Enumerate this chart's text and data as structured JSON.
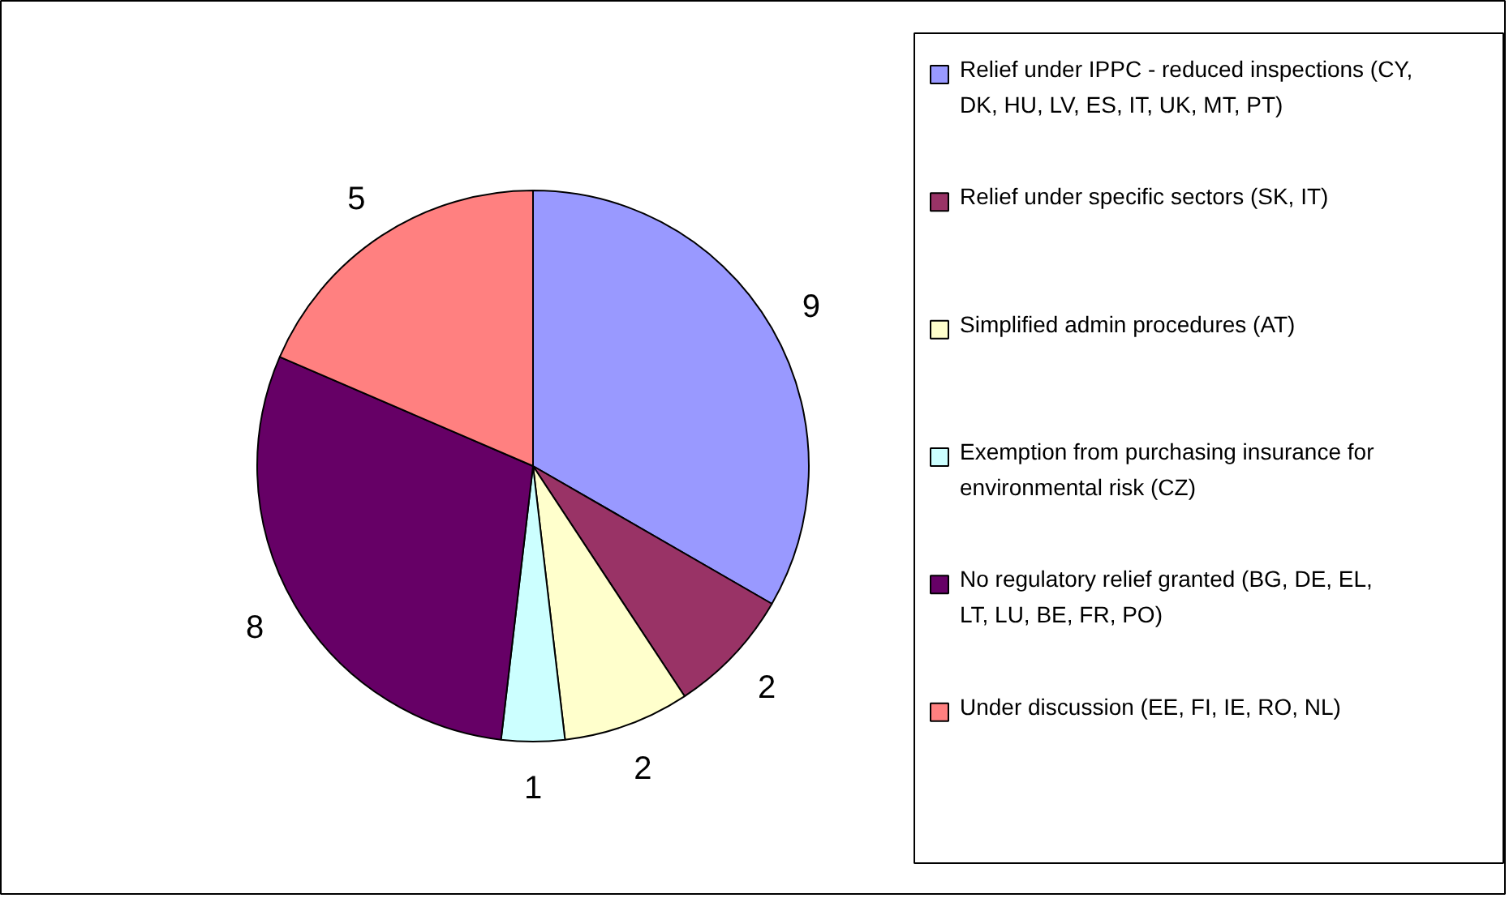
{
  "chart_data": {
    "type": "pie",
    "categories": [
      "Relief under IPPC - reduced inspections (CY, DK, HU, LV, ES, IT, UK, MT, PT)",
      "Relief under specific sectors (SK, IT)",
      "Simplified admin procedures (AT)",
      "Exemption from purchasing insurance for environmental risk (CZ)",
      "No regulatory relief granted (BG, DE, EL, LT, LU, BE, FR, PO)",
      "Under discussion (EE, FI, IE, RO, NL)"
    ],
    "values": [
      9,
      2,
      2,
      1,
      8,
      5
    ],
    "colors": [
      "#9999ff",
      "#993366",
      "#ffffcc",
      "#ccffff",
      "#660066",
      "#ff8080"
    ],
    "data_labels": true,
    "legend": "right"
  }
}
